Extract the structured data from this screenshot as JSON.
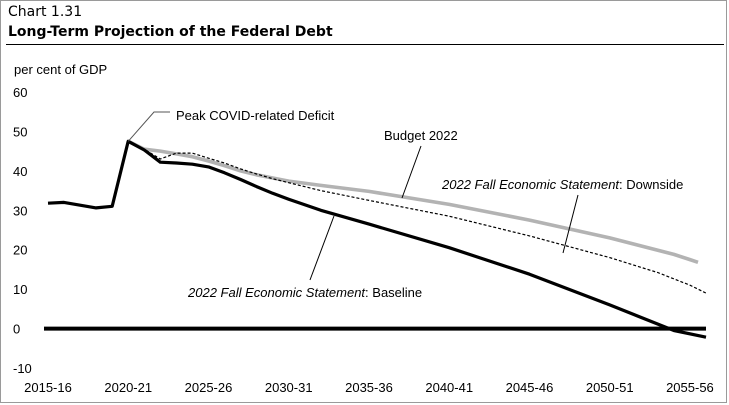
{
  "header": {
    "chart_number": "Chart 1.31",
    "title": "Long-Term Projection of the Federal Debt"
  },
  "chart_data": {
    "type": "line",
    "title": "Long-Term Projection of the Federal Debt",
    "ylabel": "per cent of GDP",
    "xlabel": "",
    "ylim": [
      -10,
      60
    ],
    "yticks": [
      60,
      50,
      40,
      30,
      20,
      10,
      0,
      -10
    ],
    "xlim": [
      2015,
      2056
    ],
    "xticks": [
      {
        "label": "2015-16",
        "x": 2015
      },
      {
        "label": "2020-21",
        "x": 2020
      },
      {
        "label": "2025-26",
        "x": 2025
      },
      {
        "label": "2030-31",
        "x": 2030
      },
      {
        "label": "2035-36",
        "x": 2035
      },
      {
        "label": "2040-41",
        "x": 2040
      },
      {
        "label": "2045-46",
        "x": 2045
      },
      {
        "label": "2050-51",
        "x": 2050
      },
      {
        "label": "2055-56",
        "x": 2055
      }
    ],
    "grid": false,
    "series": [
      {
        "name": "Budget 2022",
        "color": "#b3b3b3",
        "style": "solid-thick",
        "points": [
          [
            2020,
            47.5
          ],
          [
            2021,
            45.5
          ],
          [
            2022,
            45
          ],
          [
            2023,
            44.3
          ],
          [
            2024,
            43.6
          ],
          [
            2025,
            42.5
          ],
          [
            2026,
            41.3
          ],
          [
            2027,
            40
          ],
          [
            2028,
            39
          ],
          [
            2029,
            38.2
          ],
          [
            2030,
            37.4
          ],
          [
            2032,
            36.3
          ],
          [
            2035,
            34.8
          ],
          [
            2040,
            31.5
          ],
          [
            2045,
            27.5
          ],
          [
            2050,
            23
          ],
          [
            2054,
            18.8
          ],
          [
            2055,
            17.5
          ],
          [
            2055.5,
            16.8
          ]
        ]
      },
      {
        "name": "2022 Fall Economic Statement: Downside",
        "color": "#000000",
        "style": "dashed",
        "points": [
          [
            2020,
            47.5
          ],
          [
            2021,
            45.5
          ],
          [
            2022,
            43
          ],
          [
            2023,
            44.5
          ],
          [
            2024,
            44.5
          ],
          [
            2025,
            43.2
          ],
          [
            2026,
            42
          ],
          [
            2027,
            40.5
          ],
          [
            2028,
            39.2
          ],
          [
            2029,
            38
          ],
          [
            2030,
            37
          ],
          [
            2032,
            35
          ],
          [
            2035,
            32.5
          ],
          [
            2040,
            28.5
          ],
          [
            2045,
            23.5
          ],
          [
            2050,
            18
          ],
          [
            2053,
            14.2
          ],
          [
            2055,
            11
          ],
          [
            2056,
            9
          ]
        ]
      },
      {
        "name": "2022 Fall Economic Statement: Baseline",
        "color": "#000000",
        "style": "solid-thick",
        "points": [
          [
            2015,
            31.8
          ],
          [
            2016,
            32
          ],
          [
            2017,
            31.3
          ],
          [
            2018,
            30.6
          ],
          [
            2019,
            31
          ],
          [
            2020,
            47.5
          ],
          [
            2021,
            45.3
          ],
          [
            2022,
            42.2
          ],
          [
            2023,
            42
          ],
          [
            2024,
            41.7
          ],
          [
            2025,
            41
          ],
          [
            2026,
            39.5
          ],
          [
            2027,
            37.8
          ],
          [
            2028,
            36
          ],
          [
            2029,
            34.3
          ],
          [
            2030,
            32.8
          ],
          [
            2032,
            30
          ],
          [
            2035,
            26.5
          ],
          [
            2040,
            20.5
          ],
          [
            2045,
            13.8
          ],
          [
            2050,
            6
          ],
          [
            2054,
            -0.5
          ],
          [
            2056,
            -2.2
          ]
        ]
      }
    ],
    "annotations": [
      {
        "text": "Peak COVID-related Deficit",
        "target": [
          2020,
          47.5
        ]
      },
      {
        "text": "Budget 2022",
        "series": "Budget 2022"
      },
      {
        "text_italic": "2022 Fall Economic Statement",
        "text_rest": ": Downside",
        "series": "2022 Fall Economic Statement: Downside"
      },
      {
        "text_italic": "2022 Fall Economic Statement",
        "text_rest": ": Baseline",
        "series": "2022 Fall Economic Statement: Baseline"
      }
    ]
  }
}
